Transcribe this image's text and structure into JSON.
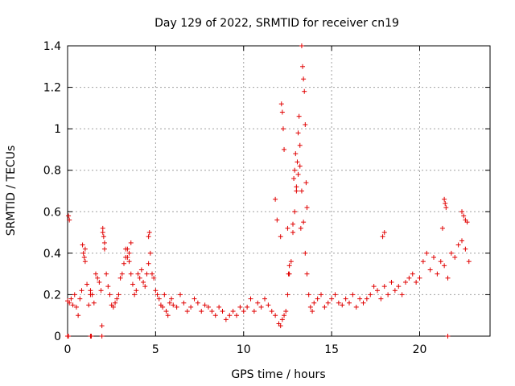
{
  "chart_data": {
    "type": "scatter",
    "title": "Day 129 of 2022, SRMTID for receiver cn19",
    "xlabel": "GPS time / hours",
    "ylabel": "SRMTID / TECUs",
    "xlim": [
      0,
      24
    ],
    "ylim": [
      0,
      1.4
    ],
    "xticks": [
      0,
      5,
      10,
      15,
      20
    ],
    "yticks": [
      0,
      0.2,
      0.4,
      0.6,
      0.8,
      1,
      1.2,
      1.4
    ],
    "xtick_labels": [
      "0",
      "5",
      "10",
      "15",
      "20"
    ],
    "ytick_labels": [
      "0",
      "0.2",
      "0.4",
      "0.6",
      "0.8",
      "1",
      "1.2",
      "1.4"
    ],
    "grid": true,
    "marker": "+",
    "color": "#e00000",
    "series": [
      {
        "name": "SRMTID",
        "x": [
          0.0,
          0.1,
          0.2,
          0.3,
          0.4,
          0.5,
          0.6,
          0.7,
          0.8,
          0.9,
          1.0,
          1.1,
          1.2,
          1.3,
          1.4,
          1.5,
          1.6,
          1.7,
          1.8,
          1.9,
          2.0,
          2.1,
          2.2,
          2.3,
          2.4,
          2.5,
          2.6,
          2.7,
          2.8,
          2.9,
          3.0,
          3.1,
          3.2,
          3.3,
          3.4,
          3.5,
          3.6,
          3.7,
          3.8,
          3.9,
          4.0,
          4.1,
          4.2,
          4.3,
          4.4,
          4.5,
          4.6,
          4.7,
          4.8,
          4.9,
          5.0,
          5.1,
          5.2,
          5.3,
          5.4,
          5.5,
          5.6,
          5.7,
          5.8,
          5.9,
          6.0,
          6.2,
          6.4,
          6.6,
          6.8,
          7.0,
          7.2,
          7.4,
          7.6,
          7.8,
          8.0,
          8.2,
          8.4,
          8.6,
          8.8,
          9.0,
          9.2,
          9.4,
          9.6,
          9.8,
          10.0,
          10.2,
          10.4,
          10.6,
          10.8,
          11.0,
          11.2,
          11.4,
          11.6,
          11.8,
          12.0,
          12.1,
          12.2,
          12.3,
          12.4,
          12.5,
          12.6,
          12.7,
          12.8,
          12.9,
          13.0,
          13.1,
          13.2,
          13.3,
          13.4,
          13.5,
          13.6,
          13.7,
          13.8,
          13.9,
          14.0,
          14.2,
          14.4,
          14.6,
          14.8,
          15.0,
          15.2,
          15.4,
          15.6,
          15.8,
          16.0,
          16.2,
          16.4,
          16.6,
          16.8,
          17.0,
          17.2,
          17.4,
          17.6,
          17.8,
          18.0,
          18.2,
          18.4,
          18.6,
          18.8,
          19.0,
          19.2,
          19.4,
          19.6,
          19.8,
          20.0,
          20.2,
          20.4,
          20.6,
          20.8,
          21.0,
          21.2,
          21.4,
          21.6,
          21.8,
          22.0,
          22.2,
          22.4,
          22.6,
          22.8,
          0.05,
          0.1,
          1.3,
          1.95,
          2.0,
          4.6,
          4.65,
          12.1,
          12.15,
          12.2,
          12.25,
          12.3,
          11.8,
          11.9,
          13.25,
          13.3,
          13.35,
          13.4,
          13.45,
          13.5,
          13.2,
          13.15,
          13.1,
          12.95,
          12.9,
          12.85,
          13.0,
          13.05,
          13.55,
          13.6,
          12.8,
          17.9,
          18.0,
          21.3,
          21.4,
          21.5,
          21.45,
          22.4,
          22.5,
          22.6,
          22.7,
          12.5,
          12.55,
          12.6,
          3.4,
          3.5,
          3.3,
          3.6,
          0.85,
          0.95,
          1.0,
          2.05,
          2.1,
          0.0,
          0.05,
          1.3,
          1.35,
          1.95,
          21.6
        ],
        "y": [
          0.17,
          0.16,
          0.18,
          0.15,
          0.2,
          0.14,
          0.1,
          0.18,
          0.22,
          0.4,
          0.36,
          0.25,
          0.15,
          0.22,
          0.2,
          0.16,
          0.3,
          0.28,
          0.26,
          0.22,
          0.5,
          0.45,
          0.3,
          0.24,
          0.2,
          0.15,
          0.14,
          0.16,
          0.18,
          0.2,
          0.28,
          0.3,
          0.35,
          0.38,
          0.42,
          0.36,
          0.3,
          0.25,
          0.2,
          0.22,
          0.3,
          0.28,
          0.32,
          0.26,
          0.24,
          0.3,
          0.35,
          0.4,
          0.3,
          0.28,
          0.22,
          0.2,
          0.18,
          0.15,
          0.14,
          0.2,
          0.12,
          0.1,
          0.16,
          0.18,
          0.15,
          0.14,
          0.2,
          0.16,
          0.12,
          0.14,
          0.18,
          0.16,
          0.12,
          0.15,
          0.14,
          0.12,
          0.1,
          0.14,
          0.12,
          0.08,
          0.1,
          0.12,
          0.1,
          0.14,
          0.12,
          0.14,
          0.18,
          0.12,
          0.16,
          0.14,
          0.18,
          0.15,
          0.12,
          0.1,
          0.06,
          0.05,
          0.08,
          0.1,
          0.12,
          0.2,
          0.3,
          0.36,
          0.5,
          0.6,
          0.7,
          0.78,
          0.82,
          0.7,
          0.55,
          0.4,
          0.3,
          0.2,
          0.14,
          0.12,
          0.16,
          0.18,
          0.2,
          0.14,
          0.16,
          0.18,
          0.2,
          0.16,
          0.15,
          0.18,
          0.16,
          0.2,
          0.14,
          0.18,
          0.16,
          0.18,
          0.2,
          0.24,
          0.22,
          0.18,
          0.24,
          0.2,
          0.26,
          0.22,
          0.24,
          0.2,
          0.26,
          0.28,
          0.3,
          0.26,
          0.28,
          0.36,
          0.4,
          0.32,
          0.38,
          0.3,
          0.36,
          0.34,
          0.28,
          0.4,
          0.38,
          0.44,
          0.46,
          0.42,
          0.36,
          0.58,
          0.56,
          0.2,
          0.05,
          0.52,
          0.48,
          0.5,
          0.48,
          1.12,
          1.08,
          1.0,
          0.9,
          0.66,
          0.56,
          0.52,
          1.4,
          1.3,
          1.24,
          1.18,
          1.02,
          0.92,
          1.06,
          0.98,
          0.88,
          0.8,
          0.76,
          0.72,
          0.84,
          0.74,
          0.62,
          0.54,
          0.48,
          0.5,
          0.52,
          0.66,
          0.62,
          0.64,
          0.6,
          0.58,
          0.56,
          0.55,
          0.52,
          0.3,
          0.34,
          0.38,
          0.4,
          0.42,
          0.45,
          0.44,
          0.38,
          0.42,
          0.48,
          0.42,
          0.0,
          0.0,
          0.0,
          0.0,
          0.0,
          0.0
        ]
      }
    ]
  }
}
